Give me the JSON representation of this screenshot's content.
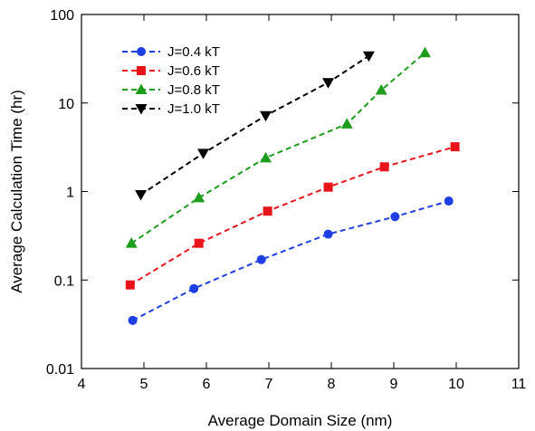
{
  "chart_data": {
    "type": "line",
    "xlabel": "Average Domain Size (nm)",
    "ylabel": "Average Calculation Time (hr)",
    "xlim": [
      4,
      11
    ],
    "ylim": [
      0.01,
      100
    ],
    "yscale": "log",
    "x_ticks": [
      4,
      5,
      6,
      7,
      8,
      9,
      10,
      11
    ],
    "x_tick_labels": [
      "4",
      "5",
      "6",
      "7",
      "8",
      "9",
      "10",
      "11"
    ],
    "y_ticks": [
      0.01,
      0.1,
      1,
      10,
      100
    ],
    "y_tick_labels": [
      "0.01",
      "0.1",
      "1",
      "10",
      "100"
    ],
    "grid": false,
    "legend_position": "top-left",
    "series": [
      {
        "name": "J=0.4 kT",
        "color": "#1f3fe6",
        "marker": "circle",
        "points": [
          [
            4.82,
            0.035
          ],
          [
            5.8,
            0.08
          ],
          [
            6.88,
            0.17
          ],
          [
            7.95,
            0.33
          ],
          [
            9.02,
            0.52
          ],
          [
            9.88,
            0.78
          ]
        ]
      },
      {
        "name": "J=0.6 kT",
        "color": "#e8141a",
        "marker": "square",
        "points": [
          [
            4.78,
            0.088
          ],
          [
            5.88,
            0.26
          ],
          [
            6.98,
            0.6
          ],
          [
            7.95,
            1.12
          ],
          [
            8.85,
            1.9
          ],
          [
            9.98,
            3.2
          ]
        ]
      },
      {
        "name": "J=0.8 kT",
        "color": "#1c9e1c",
        "marker": "triangle-up",
        "points": [
          [
            4.8,
            0.26
          ],
          [
            5.88,
            0.85
          ],
          [
            6.95,
            2.4
          ],
          [
            8.25,
            5.8
          ],
          [
            8.8,
            14
          ],
          [
            9.5,
            37
          ]
        ]
      },
      {
        "name": "J=1.0 kT",
        "color": "#000000",
        "marker": "triangle-down",
        "points": [
          [
            4.95,
            0.92
          ],
          [
            5.95,
            2.7
          ],
          [
            6.95,
            7.2
          ],
          [
            7.95,
            17
          ],
          [
            8.6,
            34
          ]
        ]
      }
    ]
  }
}
